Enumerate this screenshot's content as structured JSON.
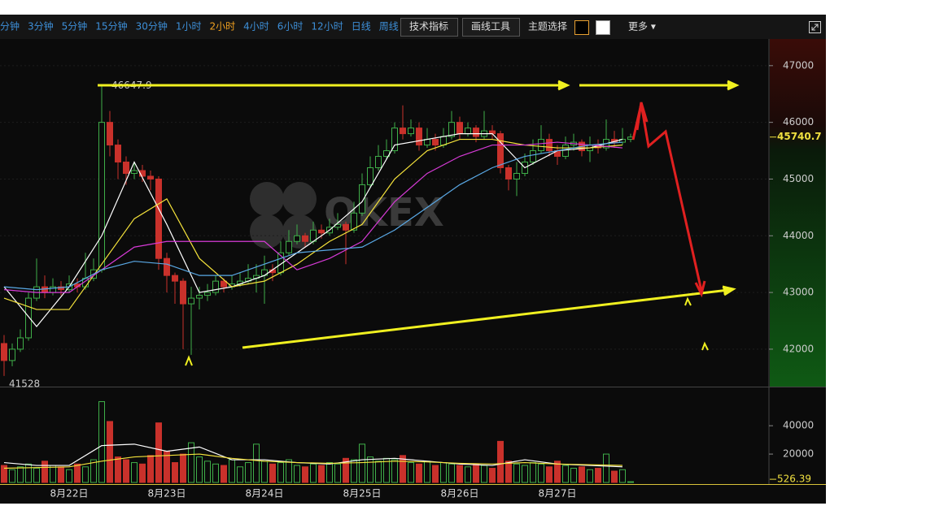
{
  "toolbar": {
    "intervals": [
      "分钟",
      "3分钟",
      "5分钟",
      "15分钟",
      "30分钟",
      "1小时",
      "2小时",
      "4小时",
      "6小时",
      "12小时",
      "日线",
      "周线"
    ],
    "active": 6,
    "buttons": [
      "技术指标",
      "画线工具"
    ],
    "theme_label": "主题选择",
    "more": "更多 ▾"
  },
  "chart_data": {
    "type": "candlestick",
    "watermark": "OKEX",
    "categories": [
      null,
      null,
      null,
      null,
      null,
      null,
      null,
      null,
      "8月22日",
      null,
      null,
      null,
      null,
      null,
      null,
      null,
      null,
      null,
      null,
      null,
      "8月23日",
      null,
      null,
      null,
      null,
      null,
      null,
      null,
      null,
      null,
      null,
      null,
      "8月24日",
      null,
      null,
      null,
      null,
      null,
      null,
      null,
      null,
      null,
      null,
      null,
      "8月25日",
      null,
      null,
      null,
      null,
      null,
      null,
      null,
      null,
      null,
      null,
      null,
      "8月26日",
      null,
      null,
      null,
      null,
      null,
      null,
      null,
      null,
      null,
      null,
      null,
      "8月27日",
      null,
      null,
      null,
      null,
      null,
      null,
      null,
      null,
      null
    ],
    "open": [
      42100,
      41800,
      42000,
      42200,
      42900,
      43100,
      43000,
      43100,
      43050,
      43150,
      43100,
      43250,
      43400,
      46000,
      45600,
      45300,
      45100,
      45150,
      45050,
      45000,
      43600,
      43300,
      43200,
      42800,
      42900,
      42950,
      43000,
      43200,
      43100,
      43150,
      43200,
      43250,
      43300,
      43400,
      43350,
      43700,
      43900,
      44000,
      43900,
      44100,
      44050,
      44150,
      44200,
      44100,
      44400,
      44900,
      45200,
      45400,
      45500,
      45900,
      45800,
      45900,
      45600,
      45700,
      45600,
      45750,
      46000,
      45800,
      45900,
      45750,
      45850,
      45800,
      45200,
      45000,
      45100,
      45300,
      45500,
      45700,
      45500,
      45400,
      45600,
      45650,
      45500,
      45600,
      45550,
      45700,
      45650,
      45700
    ],
    "high": [
      42250,
      42100,
      42350,
      43000,
      43600,
      43300,
      43250,
      43200,
      43300,
      43250,
      43700,
      43600,
      46647.9,
      46200,
      45700,
      45400,
      45300,
      45250,
      45150,
      45050,
      43700,
      43350,
      43250,
      43100,
      43100,
      43150,
      43300,
      43250,
      43300,
      43350,
      43500,
      43500,
      43650,
      43500,
      43900,
      44100,
      44200,
      44050,
      44250,
      44200,
      44300,
      44400,
      44250,
      44600,
      45100,
      45400,
      45600,
      45700,
      46000,
      46300,
      46050,
      46000,
      45900,
      45800,
      45900,
      46200,
      46100,
      46000,
      45950,
      46200,
      45950,
      45850,
      45250,
      45300,
      45450,
      45700,
      45950,
      45800,
      45600,
      45750,
      45800,
      45700,
      45750,
      45700,
      46050,
      45850,
      45900,
      45800
    ],
    "low": [
      41528,
      41700,
      41950,
      42150,
      42850,
      42900,
      42950,
      42950,
      43000,
      43000,
      43050,
      43200,
      43350,
      45400,
      45000,
      44900,
      45000,
      44950,
      44800,
      43400,
      43000,
      42800,
      42000,
      41900,
      42700,
      42850,
      42950,
      43000,
      43050,
      43100,
      43150,
      43000,
      42800,
      43200,
      43300,
      43650,
      43850,
      43800,
      43850,
      43950,
      44000,
      44100,
      43500,
      44050,
      44350,
      44850,
      45150,
      45350,
      45450,
      45700,
      45750,
      45500,
      45550,
      45500,
      45550,
      45700,
      45700,
      45750,
      45650,
      45700,
      45700,
      45100,
      44800,
      44700,
      45050,
      45250,
      45450,
      45400,
      45250,
      45350,
      45500,
      45400,
      45300,
      45450,
      45500,
      45550,
      45600,
      45650
    ],
    "close": [
      41800,
      42000,
      42200,
      42900,
      43100,
      43000,
      43100,
      43050,
      43150,
      43100,
      43250,
      43400,
      46000,
      45600,
      45300,
      45100,
      45150,
      45050,
      45000,
      43600,
      43300,
      43200,
      42800,
      42900,
      42950,
      43000,
      43200,
      43100,
      43150,
      43200,
      43250,
      43300,
      43400,
      43350,
      43700,
      43900,
      44000,
      43900,
      44100,
      44050,
      44150,
      44200,
      44100,
      44400,
      44900,
      45200,
      45400,
      45500,
      45900,
      45800,
      45900,
      45600,
      45700,
      45600,
      45750,
      46000,
      45800,
      45900,
      45750,
      45850,
      45800,
      45200,
      45000,
      45100,
      45300,
      45500,
      45700,
      45500,
      45400,
      45600,
      45650,
      45500,
      45600,
      45550,
      45700,
      45650,
      45700,
      45740.7
    ],
    "up_color": "#3fae49",
    "down_color": "#c9312b",
    "ylim": [
      41340,
      47470
    ],
    "yticks": [
      42000,
      43000,
      44000,
      45000,
      46000,
      47000
    ],
    "ma": [
      {
        "color": "#ffffff",
        "x": [
          0,
          4,
          8,
          12,
          16,
          20,
          24,
          28,
          32,
          36,
          40,
          44,
          48,
          52,
          56,
          60,
          64,
          68,
          72,
          76
        ],
        "values": [
          43100,
          42400,
          43100,
          44000,
          45300,
          44200,
          43000,
          43100,
          43300,
          43700,
          44100,
          44600,
          45600,
          45700,
          45800,
          45800,
          45200,
          45500,
          45550,
          45700
        ]
      },
      {
        "color": "#f5e33b",
        "x": [
          0,
          4,
          8,
          12,
          16,
          20,
          24,
          28,
          32,
          36,
          40,
          44,
          48,
          52,
          56,
          60,
          64,
          68,
          72,
          76
        ],
        "values": [
          42900,
          42700,
          42700,
          43500,
          44300,
          44650,
          43600,
          43100,
          43200,
          43500,
          43900,
          44200,
          45000,
          45500,
          45700,
          45700,
          45600,
          45550,
          45550,
          45600
        ]
      },
      {
        "color": "#d63ad6",
        "x": [
          0,
          4,
          8,
          12,
          16,
          20,
          24,
          28,
          32,
          36,
          40,
          44,
          48,
          52,
          56,
          60,
          64,
          68,
          72,
          76
        ],
        "values": [
          43050,
          43000,
          43000,
          43400,
          43800,
          43900,
          43900,
          43900,
          43900,
          43400,
          43600,
          43900,
          44600,
          45100,
          45400,
          45600,
          45600,
          45650,
          45600,
          45550
        ]
      },
      {
        "color": "#5aa9e6",
        "x": [
          0,
          4,
          8,
          12,
          16,
          20,
          24,
          28,
          32,
          36,
          40,
          44,
          48,
          52,
          56,
          60,
          64,
          68,
          72,
          76
        ],
        "values": [
          43100,
          43050,
          43100,
          43400,
          43550,
          43500,
          43300,
          43300,
          43500,
          43700,
          43750,
          43800,
          44100,
          44500,
          44900,
          45200,
          45400,
          45500,
          45600,
          45650
        ]
      }
    ],
    "volume": {
      "values": [
        12000,
        9000,
        11000,
        13000,
        10000,
        15000,
        12000,
        11000,
        9000,
        13000,
        11000,
        16000,
        57000,
        43000,
        18000,
        16000,
        14000,
        13000,
        19000,
        42000,
        22000,
        14000,
        20000,
        28000,
        18000,
        15000,
        13000,
        12000,
        16000,
        11000,
        14000,
        27000,
        15000,
        13000,
        14000,
        16000,
        12000,
        11000,
        13000,
        12000,
        14000,
        13000,
        17000,
        16000,
        27000,
        18000,
        15000,
        17000,
        16000,
        19000,
        14000,
        13000,
        15000,
        12000,
        14000,
        13000,
        12000,
        11000,
        13000,
        12000,
        10000,
        29000,
        15000,
        13000,
        12000,
        14000,
        13000,
        11000,
        15000,
        12000,
        10000,
        11000,
        9000,
        10000,
        20000,
        8000,
        9000,
        526.39
      ],
      "ylim": [
        0,
        67000
      ],
      "yticks": [
        20000,
        40000
      ],
      "ma": [
        {
          "color": "#ffffff",
          "x": [
            0,
            4,
            8,
            12,
            16,
            20,
            24,
            28,
            32,
            36,
            40,
            44,
            48,
            52,
            56,
            60,
            64,
            68,
            72,
            76
          ],
          "values": [
            14000,
            12000,
            12000,
            26000,
            27000,
            22000,
            25000,
            16000,
            16000,
            14000,
            13000,
            16000,
            17000,
            15000,
            13000,
            12000,
            16000,
            13000,
            12000,
            11000
          ]
        },
        {
          "color": "#f5e33b",
          "x": [
            0,
            4,
            8,
            12,
            16,
            20,
            24,
            28,
            32,
            36,
            40,
            44,
            48,
            52,
            56,
            60,
            64,
            68,
            72,
            76
          ],
          "values": [
            10000,
            10500,
            11000,
            15000,
            18000,
            19000,
            20000,
            17000,
            15000,
            14000,
            13500,
            14000,
            15000,
            14500,
            13500,
            13000,
            14000,
            13000,
            12500,
            12000
          ]
        }
      ]
    }
  }
}
